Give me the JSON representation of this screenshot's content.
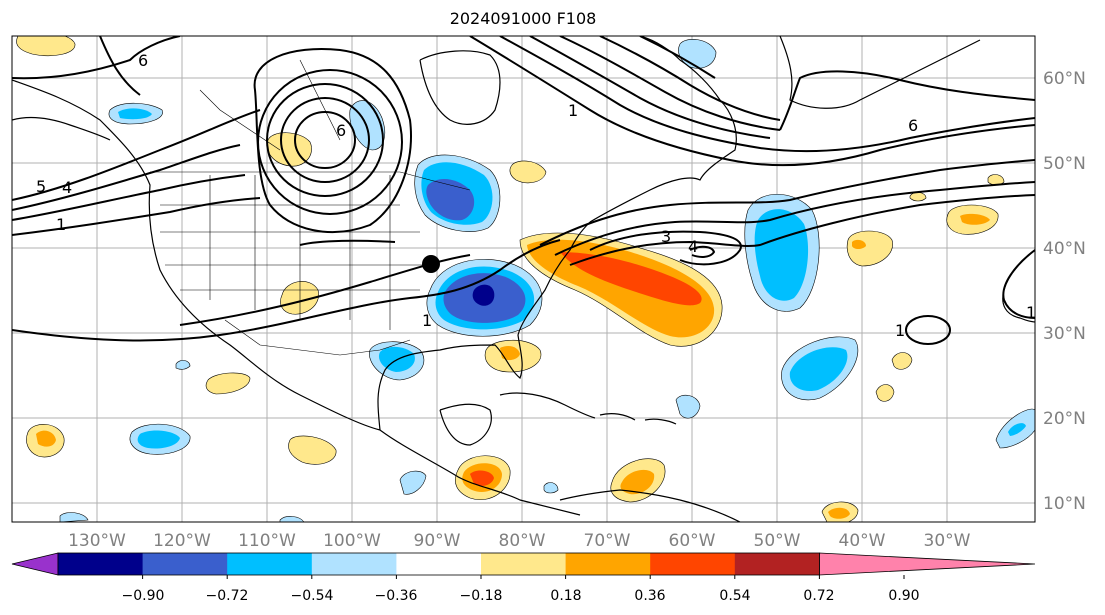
{
  "title": "2024091000 F108",
  "longitude_labels": [
    "130°W",
    "120°W",
    "110°W",
    "100°W",
    "90°W",
    "80°W",
    "70°W",
    "60°W",
    "50°W",
    "40°W",
    "30°W"
  ],
  "latitude_labels": [
    "60°N",
    "50°N",
    "40°N",
    "30°N",
    "20°N",
    "10°N"
  ],
  "contour_labels": [
    "6",
    "5",
    "4",
    "1",
    "1",
    "3",
    "6",
    "4",
    "1",
    "6",
    "1",
    "1"
  ],
  "colorbar": {
    "tick_labels": [
      "−0.90",
      "−0.72",
      "−0.54",
      "−0.36",
      "−0.18",
      "0.18",
      "0.36",
      "0.54",
      "0.72",
      "0.90"
    ],
    "colors": [
      "#9932cc",
      "#00008b",
      "#3a5fcd",
      "#00bfff",
      "#b0e2ff",
      "#ffffff",
      "#ffe88c",
      "#ffa500",
      "#ff4500",
      "#b22222",
      "#ff82ab"
    ]
  },
  "colors": {
    "positive_light": "#ffe88c",
    "positive_mid": "#ffa500",
    "positive_strong": "#ff4500",
    "negative_light": "#b0e2ff",
    "negative_mid": "#00bfff",
    "negative_strong": "#3a5fcd",
    "negative_extreme": "#00008b",
    "grid": "#b0b0b0"
  },
  "markers": [
    {
      "name": "black-dot",
      "lon": "90°W",
      "lat": "38°N"
    }
  ]
}
